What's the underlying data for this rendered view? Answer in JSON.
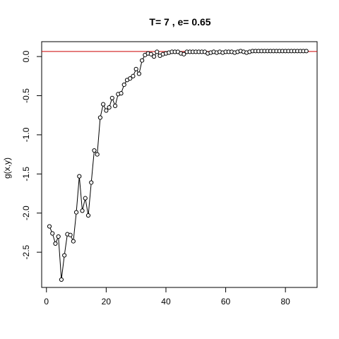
{
  "chart_data": {
    "type": "line",
    "title": "T=  7 , e=  0.65",
    "xlabel": "",
    "ylabel": "g(x,y)",
    "xlim": [
      -1.6,
      90.6
    ],
    "ylim": [
      -2.95,
      0.19
    ],
    "xticks": [
      0,
      20,
      40,
      60,
      80
    ],
    "yticks": [
      -2.5,
      -2.0,
      -1.5,
      -1.0,
      -0.5,
      0.0
    ],
    "ytick_labels": [
      "-2.5",
      "-2.0",
      "-1.5",
      "-1.0",
      "-0.5",
      "0.0"
    ],
    "grid": false,
    "reference_line": {
      "y": 0.065,
      "color": "#cc0000"
    },
    "series": [
      {
        "marker": "open-circle",
        "color": "#000000",
        "x": [
          1,
          2,
          3,
          4,
          5,
          6,
          7,
          8,
          9,
          10,
          11,
          12,
          13,
          14,
          15,
          16,
          17,
          18,
          19,
          20,
          21,
          22,
          23,
          24,
          25,
          26,
          27,
          28,
          29,
          30,
          31,
          32,
          33,
          34,
          35,
          36,
          37,
          38,
          39,
          40,
          41,
          42,
          43,
          44,
          45,
          46,
          47,
          48,
          49,
          50,
          51,
          52,
          53,
          54,
          55,
          56,
          57,
          58,
          59,
          60,
          61,
          62,
          63,
          64,
          65,
          66,
          67,
          68,
          69,
          70,
          71,
          72,
          73,
          74,
          75,
          76,
          77,
          78,
          79,
          80,
          81,
          82,
          83,
          84,
          85,
          86,
          87
        ],
        "y": [
          -2.17,
          -2.26,
          -2.39,
          -2.3,
          -2.85,
          -2.54,
          -2.27,
          -2.28,
          -2.36,
          -1.99,
          -1.53,
          -1.97,
          -1.81,
          -2.03,
          -1.61,
          -1.2,
          -1.25,
          -0.78,
          -0.61,
          -0.69,
          -0.65,
          -0.53,
          -0.63,
          -0.48,
          -0.47,
          -0.36,
          -0.3,
          -0.28,
          -0.25,
          -0.16,
          -0.22,
          -0.05,
          0.02,
          0.04,
          0.03,
          0.0,
          0.06,
          0.01,
          0.03,
          0.04,
          0.05,
          0.06,
          0.06,
          0.06,
          0.04,
          0.03,
          0.06,
          0.06,
          0.06,
          0.06,
          0.06,
          0.06,
          0.06,
          0.04,
          0.05,
          0.06,
          0.05,
          0.06,
          0.05,
          0.06,
          0.06,
          0.06,
          0.05,
          0.06,
          0.07,
          0.06,
          0.05,
          0.06,
          0.07,
          0.07,
          0.07,
          0.07,
          0.07,
          0.07,
          0.07,
          0.07,
          0.07,
          0.07,
          0.07,
          0.07,
          0.07,
          0.07,
          0.07,
          0.07,
          0.07,
          0.07,
          0.07
        ]
      }
    ]
  }
}
